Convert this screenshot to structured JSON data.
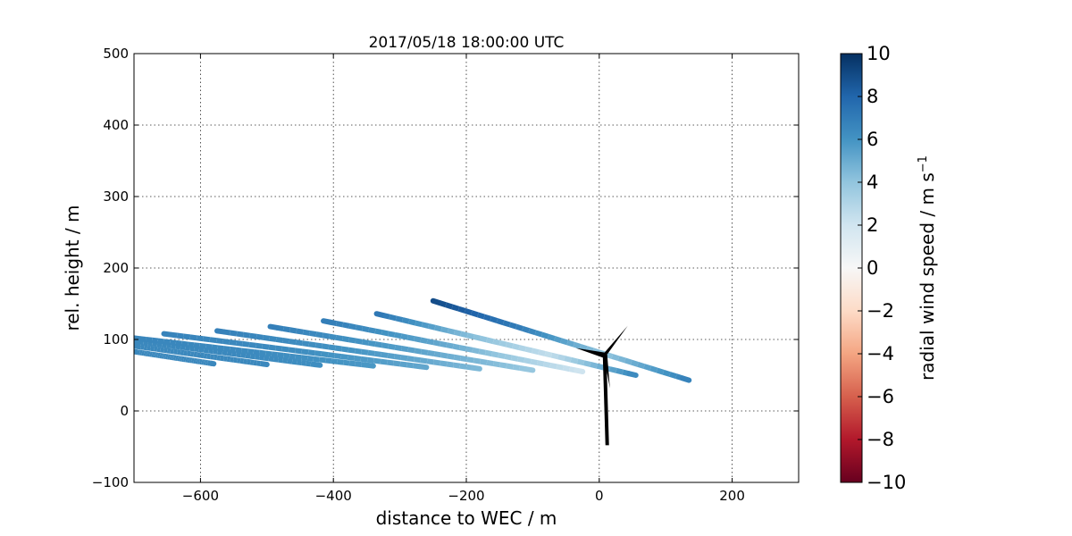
{
  "chart_data": {
    "type": "line",
    "title": "2017/05/18 18:00:00 UTC",
    "xlabel": "distance to WEC / m",
    "ylabel": "rel. height / m",
    "xlim": [
      -700,
      300
    ],
    "ylim": [
      -100,
      500
    ],
    "xticks": [
      -600,
      -400,
      -200,
      0,
      200
    ],
    "xtick_labels": [
      "−600",
      "−400",
      "−200",
      "0",
      "200"
    ],
    "yticks": [
      -100,
      0,
      100,
      200,
      300,
      400,
      500
    ],
    "ytick_labels": [
      "−100",
      "0",
      "100",
      "200",
      "300",
      "400",
      "500"
    ],
    "grid": true,
    "colorbar": {
      "label": "radial wind speed / m s",
      "label_superscript": "−1",
      "range": [
        -10,
        10
      ],
      "colormap": "RdBu",
      "ticks": [
        10,
        8,
        6,
        4,
        2,
        0,
        -2,
        -4,
        -6,
        -8,
        -10
      ],
      "tick_labels": [
        "10",
        "8",
        "6",
        "4",
        "2",
        "0",
        "−2",
        "−4",
        "−6",
        "−8",
        "−10"
      ],
      "colors": [
        "#67001f",
        "#b2182b",
        "#d6604d",
        "#f4a582",
        "#fddbc7",
        "#f7f7f7",
        "#d1e5f0",
        "#92c5de",
        "#4393c3",
        "#2166ac",
        "#053061"
      ]
    },
    "series": [
      {
        "x_start": -700,
        "y_start": 83,
        "x_end": -580,
        "y_end": 66,
        "speeds": [
          6.5,
          6.5,
          6.5
        ]
      },
      {
        "x_start": -700,
        "y_start": 91,
        "x_end": -500,
        "y_end": 65,
        "speeds": [
          6.5,
          6.5,
          6.5
        ]
      },
      {
        "x_start": -700,
        "y_start": 98,
        "x_end": -420,
        "y_end": 64,
        "speeds": [
          6.5,
          6.5,
          6.2
        ]
      },
      {
        "x_start": -700,
        "y_start": 102,
        "x_end": -340,
        "y_end": 63,
        "speeds": [
          6.6,
          6.4,
          5.8
        ]
      },
      {
        "x_start": -655,
        "y_start": 108,
        "x_end": -260,
        "y_end": 61,
        "speeds": [
          6.7,
          6.3,
          5.2
        ]
      },
      {
        "x_start": -575,
        "y_start": 112,
        "x_end": -180,
        "y_end": 59,
        "speeds": [
          6.8,
          6.0,
          4.5
        ]
      },
      {
        "x_start": -495,
        "y_start": 118,
        "x_end": -100,
        "y_end": 57,
        "speeds": [
          6.9,
          5.6,
          3.8
        ]
      },
      {
        "x_start": -415,
        "y_start": 126,
        "x_end": -25,
        "y_end": 55,
        "speeds": [
          7.0,
          5.0,
          2.0
        ]
      },
      {
        "x_start": -335,
        "y_start": 136,
        "x_end": 55,
        "y_end": 50,
        "speeds": [
          7.3,
          4.5,
          2.5,
          6.5
        ]
      },
      {
        "x_start": -250,
        "y_start": 154,
        "x_end": 135,
        "y_end": 43,
        "speeds": [
          9.0,
          7.0,
          4.0,
          6.8
        ]
      }
    ],
    "turbine": {
      "hub_x": 8,
      "hub_y": 78,
      "base_x": 12,
      "base_y": -48
    }
  }
}
